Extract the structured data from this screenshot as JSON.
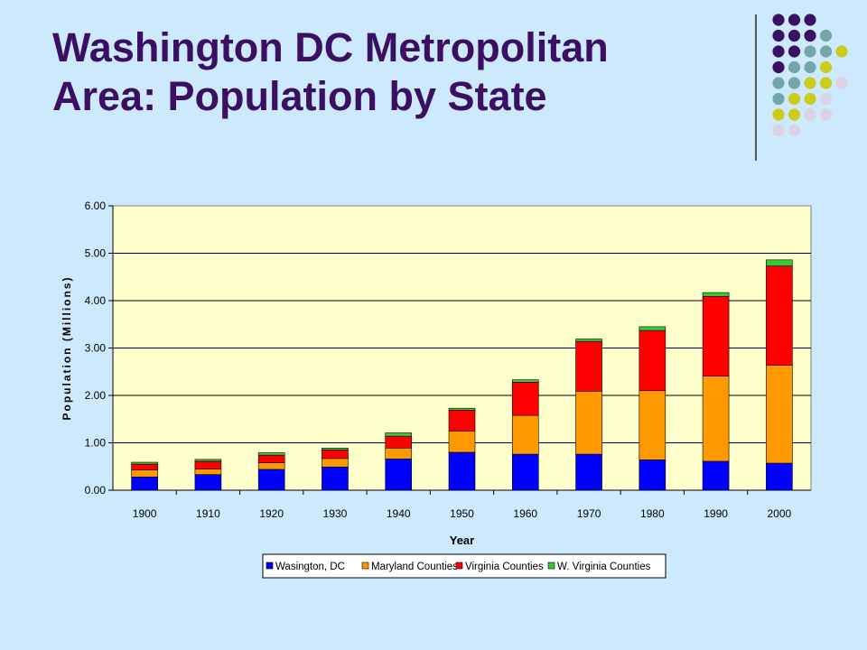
{
  "slide": {
    "title_line1": "Washington DC Metropolitan",
    "title_line2": "Area: Population by State"
  },
  "decoration": {
    "dot_colors": {
      "purple": "#3b1063",
      "teal": "#73a5aa",
      "yellow": "#cccc1a",
      "lavender": "#dcd2e6"
    },
    "dot_pattern": [
      [
        "purple",
        "purple",
        "purple"
      ],
      [
        "purple",
        "purple",
        "purple",
        "teal"
      ],
      [
        "purple",
        "purple",
        "teal",
        "teal",
        "yellow"
      ],
      [
        "purple",
        "teal",
        "teal",
        "yellow"
      ],
      [
        "teal",
        "teal",
        "yellow",
        "yellow",
        "lavender"
      ],
      [
        "teal",
        "yellow",
        "yellow",
        "lavender"
      ],
      [
        "yellow",
        "yellow",
        "lavender",
        "lavender"
      ],
      [
        "lavender",
        "lavender"
      ]
    ]
  },
  "chart_data": {
    "type": "bar",
    "stacked": true,
    "categories": [
      "1900",
      "1910",
      "1920",
      "1930",
      "1940",
      "1950",
      "1960",
      "1970",
      "1980",
      "1990",
      "2000"
    ],
    "series": [
      {
        "name": "Wasington, DC",
        "color": "#0000ff",
        "values": [
          0.28,
          0.33,
          0.44,
          0.49,
          0.66,
          0.8,
          0.76,
          0.76,
          0.64,
          0.61,
          0.57
        ]
      },
      {
        "name": "Maryland Counties",
        "color": "#ff9900",
        "values": [
          0.15,
          0.12,
          0.14,
          0.18,
          0.23,
          0.45,
          0.82,
          1.33,
          1.46,
          1.8,
          2.07
        ]
      },
      {
        "name": "Virginia Counties",
        "color": "#ff0000",
        "values": [
          0.12,
          0.16,
          0.16,
          0.18,
          0.25,
          0.44,
          0.7,
          1.05,
          1.27,
          1.68,
          2.09
        ]
      },
      {
        "name": "W. Virginia Counties",
        "color": "#33cc33",
        "values": [
          0.04,
          0.04,
          0.05,
          0.04,
          0.07,
          0.04,
          0.05,
          0.05,
          0.08,
          0.08,
          0.13
        ]
      }
    ],
    "xlabel": "Year",
    "ylabel": "Population (Millions)",
    "ylim": [
      0,
      6
    ],
    "yticks": [
      "0.00",
      "1.00",
      "2.00",
      "3.00",
      "4.00",
      "5.00",
      "6.00"
    ],
    "grid": true,
    "legend": "bottom",
    "plot_background": "#ffffcc"
  }
}
